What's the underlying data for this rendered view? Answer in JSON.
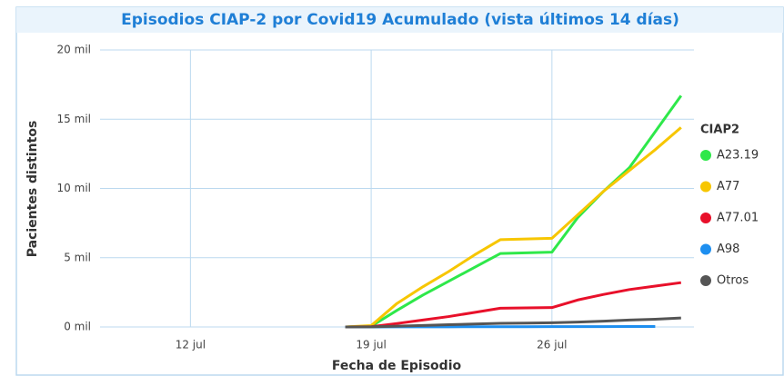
{
  "chart_data": {
    "type": "line",
    "title": "Episodios CIAP-2 por Covid19 Acumulado (vista últimos 14 días)",
    "x_label": "Fecha de Episodio",
    "y_label": "Pacientes distintos",
    "legend_title": "CIAP2",
    "legend": "right",
    "grid": true,
    "xlim": [
      8.5,
      31.5
    ],
    "xticks": [
      {
        "value": 12,
        "label": "12 jul"
      },
      {
        "value": 19,
        "label": "19 jul"
      },
      {
        "value": 26,
        "label": "26 jul"
      }
    ],
    "ylim": [
      0,
      20000
    ],
    "yticks": [
      {
        "value": 0,
        "label": "0 mil"
      },
      {
        "value": 5000,
        "label": "5 mil"
      },
      {
        "value": 10000,
        "label": "10 mil"
      },
      {
        "value": 15000,
        "label": "15 mil"
      },
      {
        "value": 20000,
        "label": "20 mil"
      }
    ],
    "x": [
      18,
      19,
      20,
      21,
      22,
      23,
      24,
      25,
      26,
      27,
      28,
      29,
      30,
      31
    ],
    "series": [
      {
        "name": "A23.19",
        "color": "#2ee84a",
        "values": [
          0,
          50,
          1200,
          2300,
          3300,
          4300,
          5300,
          5350,
          5400,
          7900,
          9800,
          11500,
          14100,
          16700
        ]
      },
      {
        "name": "A77",
        "color": "#f7c600",
        "values": [
          0,
          100,
          1700,
          2900,
          4000,
          5200,
          6300,
          6350,
          6400,
          8100,
          9800,
          11300,
          12800,
          14400
        ]
      },
      {
        "name": "A77.01",
        "color": "#e8102a",
        "values": [
          0,
          20,
          250,
          500,
          750,
          1050,
          1350,
          1380,
          1400,
          1950,
          2350,
          2700,
          2950,
          3200
        ]
      },
      {
        "name": "A98",
        "color": "#1e8ff0",
        "values": [
          0,
          0,
          5,
          10,
          12,
          15,
          18,
          20,
          22,
          25,
          27,
          29,
          30,
          null
        ]
      },
      {
        "name": "Otros",
        "color": "#555555",
        "values": [
          0,
          10,
          60,
          110,
          160,
          210,
          260,
          280,
          300,
          350,
          420,
          500,
          560,
          650
        ]
      }
    ]
  }
}
